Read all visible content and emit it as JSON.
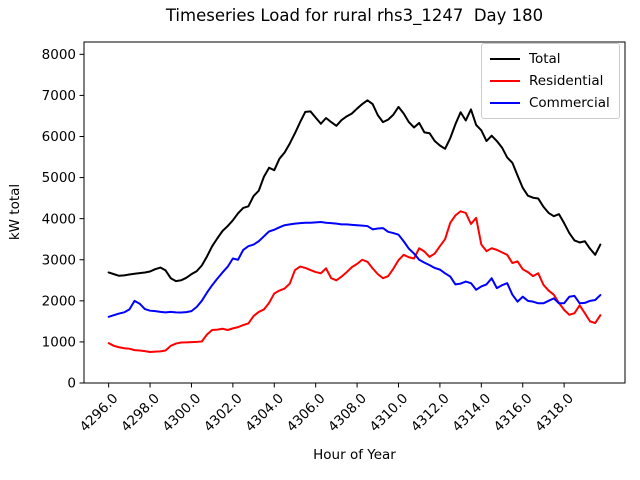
{
  "title": "Timeseries Load for rural rhs3_1247  Day 180",
  "axes": {
    "xlabel": "Hour of Year",
    "ylabel": "kW total"
  },
  "legend": {
    "items": [
      {
        "label": "Total",
        "color": "#000000"
      },
      {
        "label": "Residential",
        "color": "#ff0000"
      },
      {
        "label": "Commercial",
        "color": "#0000ff"
      }
    ]
  },
  "chart_data": {
    "type": "line",
    "title": "Timeseries Load for rural rhs3_1247  Day 180",
    "xlabel": "Hour of Year",
    "ylabel": "kW total",
    "grid": false,
    "legend_position": "upper right",
    "xlim": [
      4294.81,
      4320.94
    ],
    "ylim": [
      0,
      8300
    ],
    "xticks": {
      "values": [
        4296,
        4298,
        4300,
        4302,
        4304,
        4306,
        4308,
        4310,
        4312,
        4314,
        4316,
        4318
      ],
      "labels": [
        "4296.0",
        "4298.0",
        "4300.0",
        "4302.0",
        "4304.0",
        "4306.0",
        "4308.0",
        "4310.0",
        "4312.0",
        "4314.0",
        "4316.0",
        "4318.0"
      ],
      "rotation_deg": -45
    },
    "yticks": {
      "values": [
        0,
        1000,
        2000,
        3000,
        4000,
        5000,
        6000,
        7000,
        8000
      ],
      "labels": [
        "0",
        "1000",
        "2000",
        "3000",
        "4000",
        "5000",
        "6000",
        "7000",
        "8000"
      ]
    },
    "x_start": 4296.0,
    "x_step": 0.25,
    "n_points": 96,
    "series": [
      {
        "name": "Total",
        "color": "#000000",
        "values": [
          2690,
          2650,
          2610,
          2620,
          2640,
          2660,
          2675,
          2690,
          2715,
          2770,
          2810,
          2740,
          2550,
          2480,
          2500,
          2560,
          2650,
          2720,
          2860,
          3080,
          3330,
          3520,
          3700,
          3820,
          3960,
          4130,
          4260,
          4300,
          4550,
          4680,
          5020,
          5240,
          5180,
          5460,
          5610,
          5830,
          6080,
          6350,
          6600,
          6610,
          6460,
          6310,
          6450,
          6350,
          6260,
          6400,
          6490,
          6560,
          6680,
          6790,
          6880,
          6790,
          6520,
          6350,
          6410,
          6530,
          6720,
          6560,
          6350,
          6220,
          6330,
          6100,
          6080,
          5890,
          5780,
          5700,
          5960,
          6300,
          6590,
          6390,
          6660,
          6280,
          6150,
          5890,
          6020,
          5890,
          5730,
          5490,
          5360,
          5050,
          4750,
          4560,
          4510,
          4490,
          4290,
          4140,
          4060,
          4110,
          3890,
          3650,
          3470,
          3420,
          3450,
          3270,
          3120,
          3370
        ]
      },
      {
        "name": "Residential",
        "color": "#ff0000",
        "values": [
          970,
          905,
          870,
          845,
          835,
          800,
          790,
          775,
          755,
          765,
          770,
          790,
          905,
          960,
          985,
          990,
          995,
          1000,
          1010,
          1180,
          1290,
          1300,
          1320,
          1290,
          1330,
          1360,
          1410,
          1450,
          1630,
          1730,
          1790,
          1950,
          2180,
          2250,
          2300,
          2420,
          2750,
          2835,
          2800,
          2750,
          2700,
          2670,
          2790,
          2550,
          2500,
          2590,
          2700,
          2820,
          2900,
          3000,
          2950,
          2790,
          2650,
          2550,
          2600,
          2780,
          2990,
          3120,
          3060,
          3030,
          3280,
          3200,
          3070,
          3150,
          3330,
          3500,
          3900,
          4080,
          4180,
          4140,
          3870,
          4020,
          3370,
          3210,
          3280,
          3240,
          3180,
          3120,
          2920,
          2960,
          2770,
          2700,
          2600,
          2670,
          2390,
          2250,
          2150,
          1950,
          1780,
          1660,
          1700,
          1890,
          1700,
          1500,
          1460,
          1650
        ]
      },
      {
        "name": "Commercial",
        "color": "#0000ff",
        "values": [
          1610,
          1650,
          1690,
          1720,
          1790,
          2000,
          1930,
          1800,
          1760,
          1750,
          1730,
          1720,
          1730,
          1720,
          1715,
          1725,
          1750,
          1850,
          2000,
          2200,
          2380,
          2540,
          2690,
          2830,
          3030,
          3000,
          3240,
          3330,
          3370,
          3450,
          3570,
          3690,
          3730,
          3790,
          3840,
          3860,
          3880,
          3890,
          3900,
          3900,
          3910,
          3920,
          3900,
          3890,
          3880,
          3860,
          3860,
          3850,
          3840,
          3830,
          3820,
          3740,
          3760,
          3770,
          3680,
          3650,
          3610,
          3450,
          3270,
          3150,
          3000,
          2930,
          2870,
          2800,
          2760,
          2670,
          2590,
          2400,
          2420,
          2470,
          2430,
          2270,
          2350,
          2400,
          2550,
          2310,
          2380,
          2430,
          2150,
          1980,
          2100,
          2000,
          1980,
          1940,
          1940,
          2000,
          2060,
          1940,
          1940,
          2100,
          2120,
          1940,
          1950,
          2000,
          2020,
          2140
        ]
      }
    ]
  }
}
